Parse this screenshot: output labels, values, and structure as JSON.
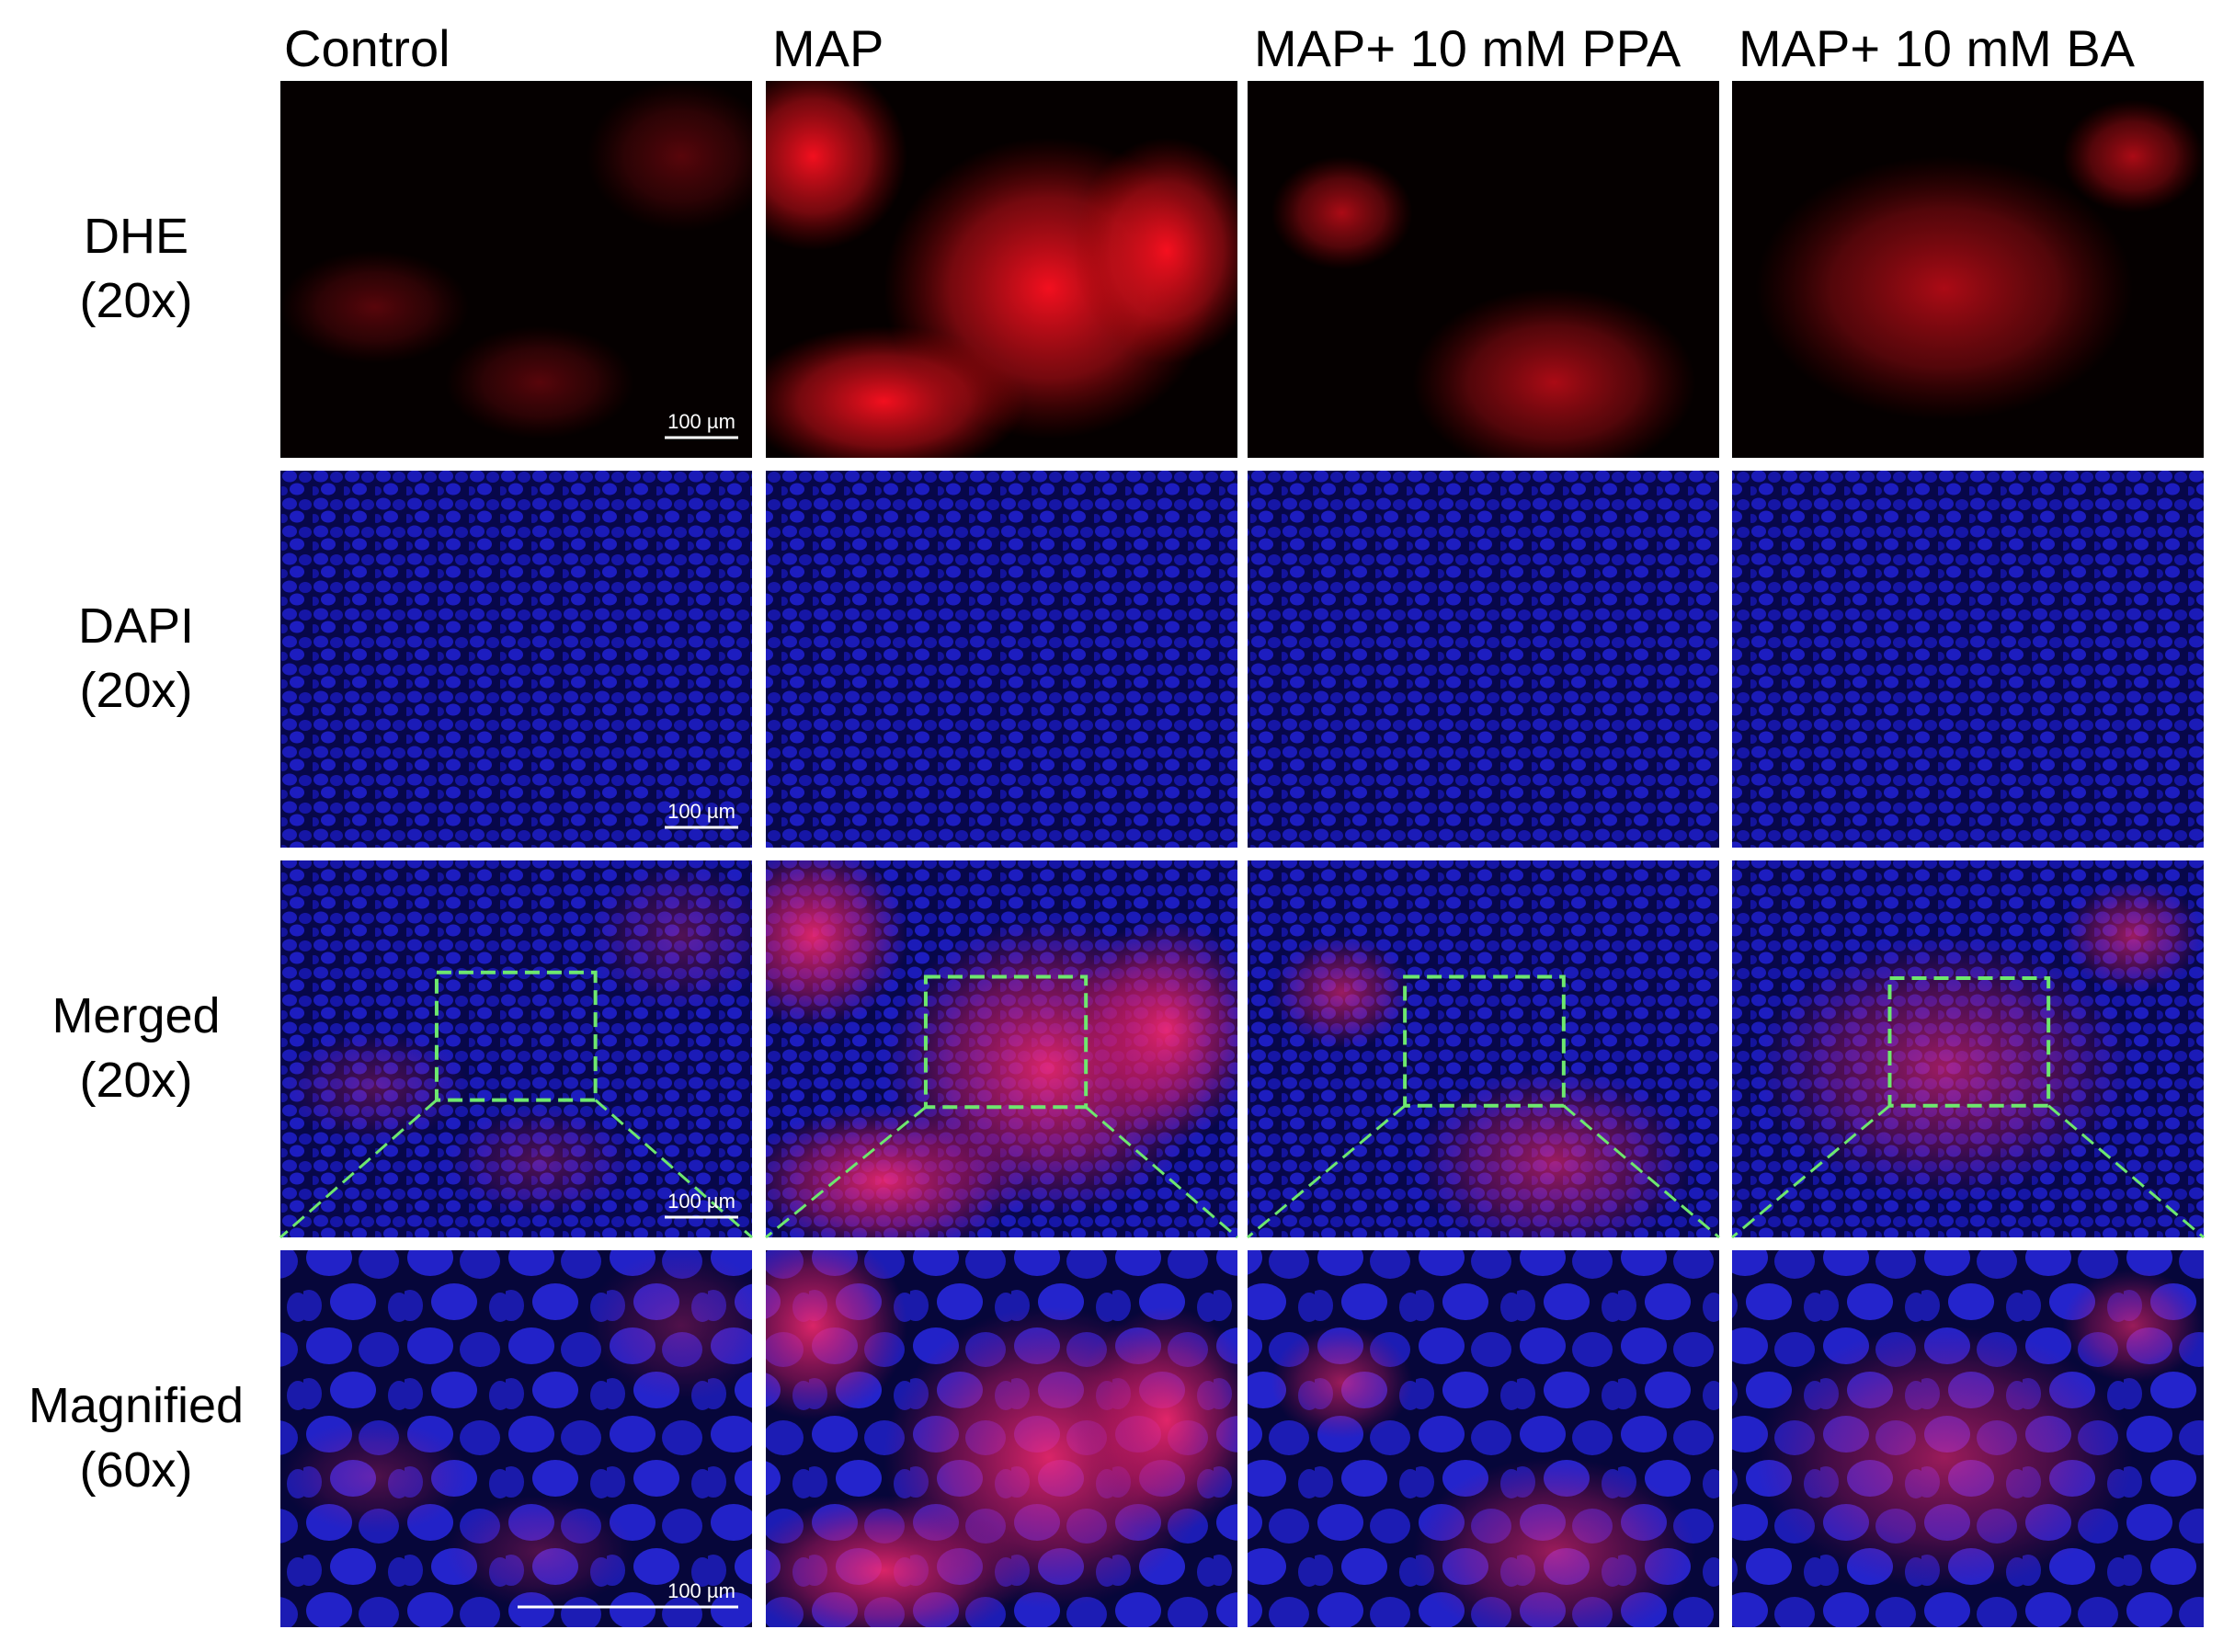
{
  "columns": [
    "Control",
    "MAP",
    "MAP+ 10 mM PPA",
    "MAP+ 10 mM BA"
  ],
  "rows": [
    {
      "stain": "DHE",
      "magnification": "(20x)"
    },
    {
      "stain": "DAPI",
      "magnification": "(20x)"
    },
    {
      "stain": "Merged",
      "magnification": "(20x)"
    },
    {
      "stain": "Magnified",
      "magnification": "(60x)"
    }
  ],
  "scale_bar_labels": [
    "100 µm",
    "100 µm",
    "100 µm",
    "100 µm"
  ]
}
